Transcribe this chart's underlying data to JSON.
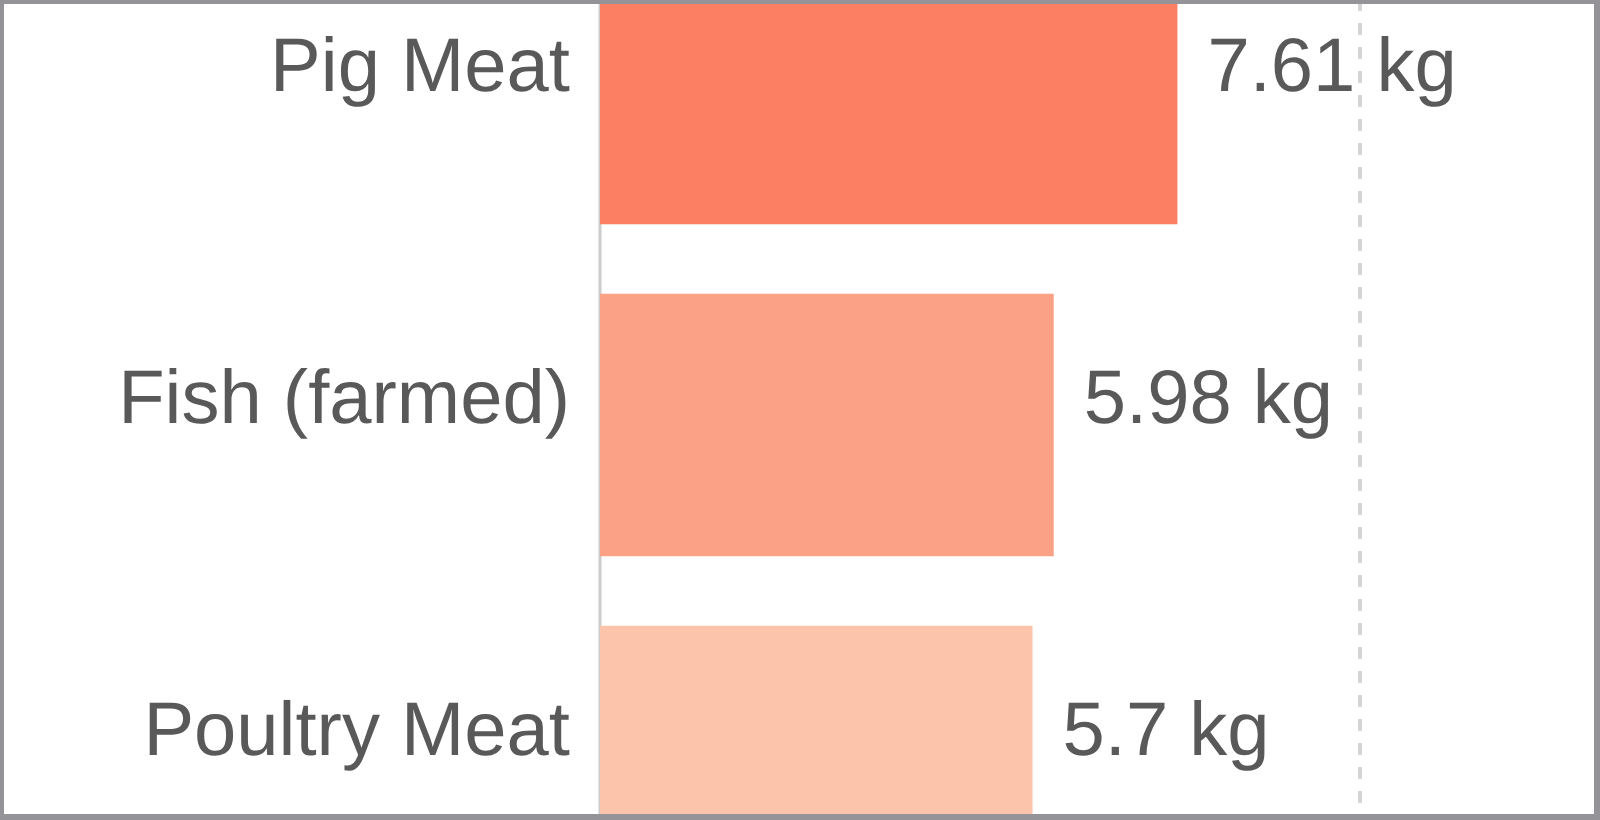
{
  "chart_data": {
    "type": "bar",
    "orientation": "horizontal",
    "categories": [
      "Pig Meat",
      "Fish (farmed)",
      "Poultry Meat"
    ],
    "values": [
      7.61,
      5.98,
      5.7
    ],
    "colors": [
      "#fc7f63",
      "#fba185",
      "#fcc4ab"
    ],
    "value_labels": [
      "7.61 kg",
      "5.98 kg",
      "5.7 kg"
    ],
    "xlim": [
      0,
      13.1
    ],
    "ref_lines": [
      {
        "axis": "x",
        "value": 10,
        "color": "#d4d4d4",
        "line_style": "dashed"
      }
    ]
  }
}
